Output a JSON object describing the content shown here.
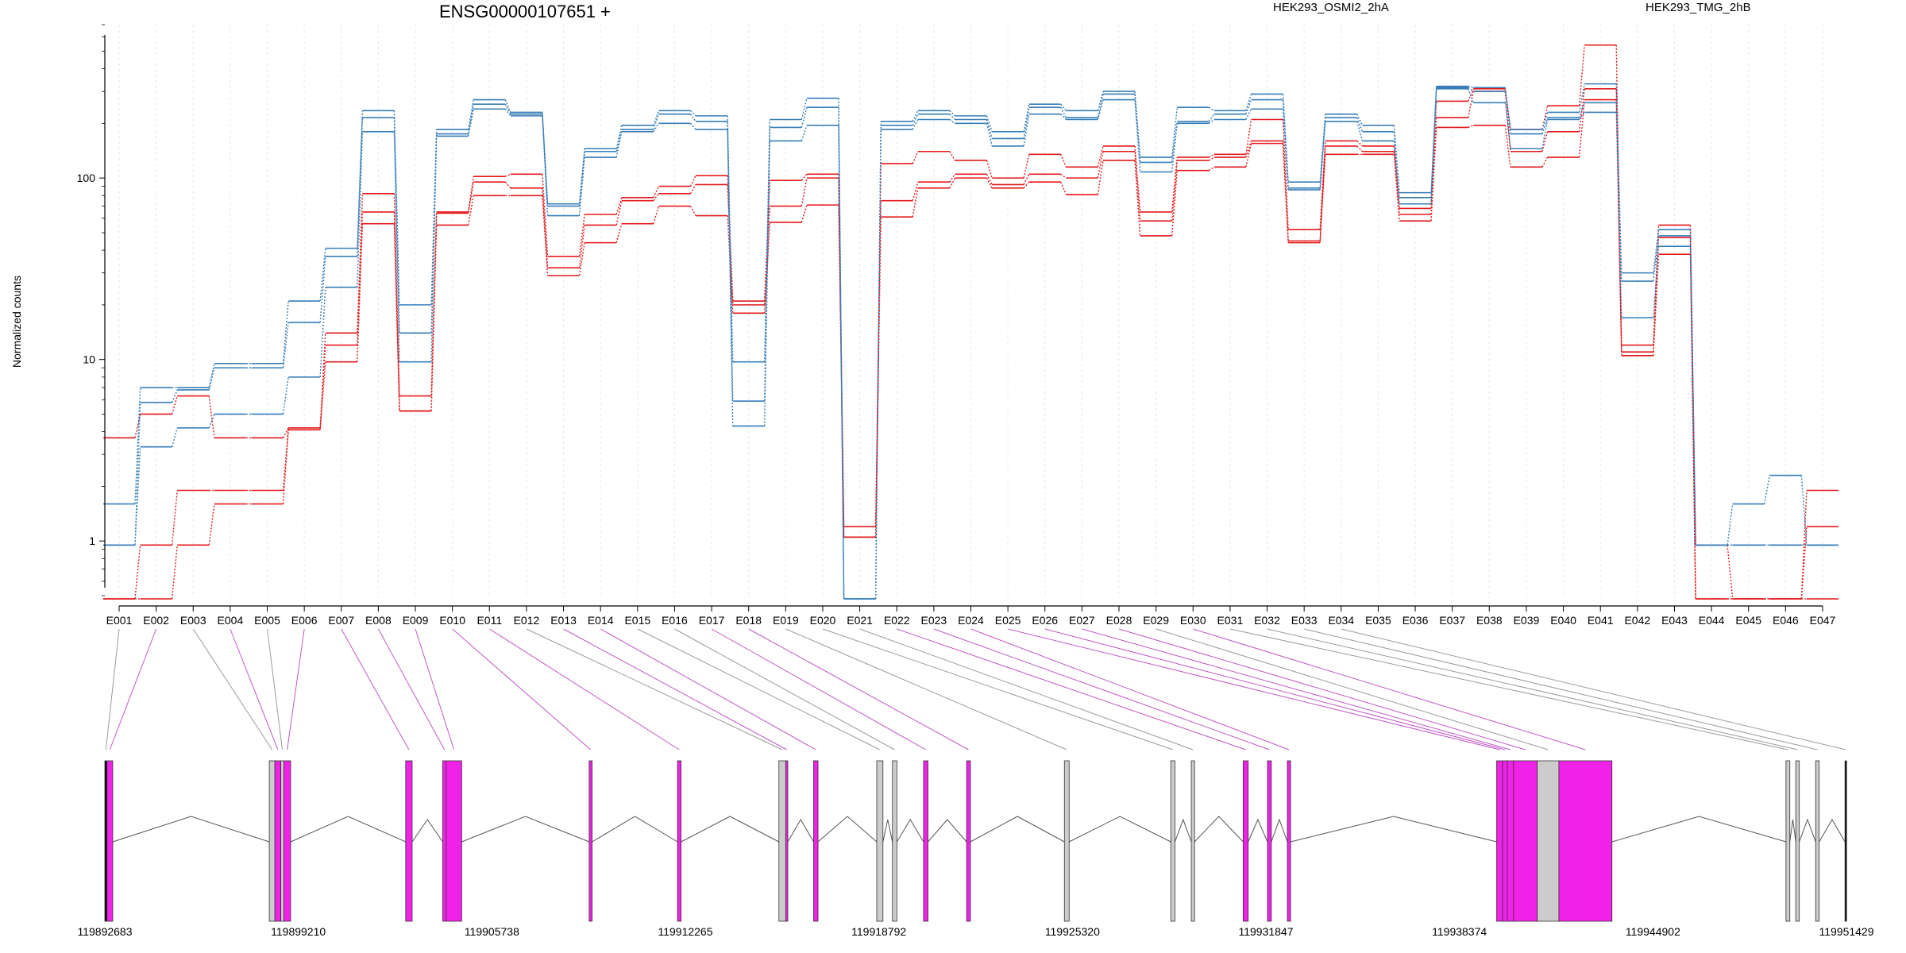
{
  "chart_data": {
    "type": "line",
    "title": "ENSG00000107651 +",
    "ylabel": "Normalized counts",
    "y_scale": "log",
    "ylim": [
      0.5,
      700
    ],
    "yticks": [
      {
        "value": 1,
        "label": "1"
      },
      {
        "value": 10,
        "label": "10"
      },
      {
        "value": 100,
        "label": "100"
      }
    ],
    "grid": true,
    "legend_placement": "top",
    "colors": {
      "HEK293_OSMI2_2hA": "#e31a1c",
      "HEK293_TMG_2hB": "#377eb8"
    },
    "legend": [
      {
        "label": "HEK293_OSMI2_2hA",
        "color": "#e31a1c"
      },
      {
        "label": "HEK293_TMG_2hB",
        "color": "#377eb8"
      }
    ],
    "categories": [
      "E001",
      "E002",
      "E003",
      "E004",
      "E005",
      "E006",
      "E007",
      "E008",
      "E009",
      "E010",
      "E011",
      "E012",
      "E013",
      "E014",
      "E015",
      "E016",
      "E017",
      "E018",
      "E019",
      "E020",
      "E021",
      "E022",
      "E023",
      "E024",
      "E025",
      "E026",
      "E027",
      "E028",
      "E029",
      "E030",
      "E031",
      "E032",
      "E033",
      "E034",
      "E035",
      "E036",
      "E037",
      "E038",
      "E039",
      "E040",
      "E041",
      "E042",
      "E043",
      "E044",
      "E045",
      "E046",
      "E047"
    ],
    "series": [
      {
        "group": "HEK293_OSMI2_2hA",
        "values": [
          3.7,
          5.0,
          6.3,
          3.7,
          3.7,
          4.2,
          14,
          82,
          6.3,
          65,
          102,
          105,
          37,
          63,
          78,
          90,
          103,
          21,
          97,
          105,
          1.2,
          120,
          140,
          125,
          100,
          135,
          115,
          150,
          65,
          130,
          135,
          210,
          52,
          160,
          150,
          68,
          265,
          310,
          185,
          250,
          540,
          12,
          55,
          0.95,
          0.48,
          0.48,
          1.9
        ]
      },
      {
        "group": "HEK293_OSMI2_2hA",
        "values": [
          0.48,
          0.95,
          1.9,
          1.9,
          1.9,
          4.2,
          12,
          65,
          5.2,
          64,
          95,
          88,
          32,
          55,
          75,
          82,
          92,
          20,
          70,
          100,
          1.05,
          75,
          95,
          105,
          92,
          105,
          100,
          140,
          58,
          125,
          130,
          160,
          45,
          150,
          140,
          63,
          215,
          300,
          140,
          180,
          310,
          11,
          47,
          0.48,
          0.48,
          0.48,
          1.2
        ]
      },
      {
        "group": "HEK293_OSMI2_2hA",
        "values": [
          0.48,
          0.48,
          0.95,
          1.6,
          1.6,
          4.1,
          9.7,
          56,
          5.2,
          55,
          80,
          80,
          29,
          44,
          56,
          70,
          62,
          18,
          57,
          71,
          1.05,
          61,
          88,
          100,
          88,
          95,
          81,
          125,
          48,
          110,
          115,
          155,
          44,
          135,
          135,
          58,
          190,
          195,
          115,
          130,
          270,
          10.5,
          38,
          0.48,
          0.48,
          0.48,
          0.48
        ]
      },
      {
        "group": "HEK293_TMG_2hB",
        "values": [
          1.6,
          7.0,
          7.0,
          9.5,
          9.5,
          21,
          41,
          235,
          20,
          185,
          270,
          230,
          72,
          145,
          195,
          235,
          220,
          9.7,
          210,
          275,
          0.48,
          205,
          235,
          220,
          180,
          255,
          235,
          300,
          130,
          245,
          235,
          290,
          95,
          225,
          195,
          83,
          320,
          315,
          185,
          230,
          330,
          30,
          52,
          0.95,
          1.6,
          2.3,
          0.95
        ]
      },
      {
        "group": "HEK293_TMG_2hB",
        "values": [
          0.95,
          5.8,
          6.8,
          9.0,
          9.0,
          16,
          37,
          215,
          14,
          175,
          255,
          225,
          70,
          140,
          185,
          225,
          205,
          5.9,
          190,
          245,
          0.48,
          195,
          225,
          210,
          165,
          245,
          215,
          290,
          122,
          205,
          225,
          270,
          88,
          215,
          180,
          78,
          315,
          300,
          175,
          215,
          260,
          27,
          48,
          0.95,
          0.95,
          0.95,
          0.95
        ]
      },
      {
        "group": "HEK293_TMG_2hB",
        "values": [
          0.95,
          3.3,
          4.2,
          5.0,
          5.0,
          8.0,
          25,
          180,
          9.7,
          170,
          240,
          220,
          62,
          130,
          180,
          200,
          185,
          4.3,
          160,
          195,
          0.48,
          185,
          210,
          200,
          150,
          225,
          210,
          270,
          108,
          200,
          210,
          240,
          86,
          205,
          160,
          72,
          310,
          260,
          145,
          210,
          230,
          17,
          42,
          0.95,
          0.95,
          0.95,
          0.95
        ]
      }
    ],
    "exon_map": {
      "coordinate_labels": [
        "119892683",
        "119899210",
        "119905738",
        "119912265",
        "119918792",
        "119925320",
        "119931847",
        "119938374",
        "119944902",
        "119951429"
      ],
      "exons": [
        {
          "start": 119892683,
          "end": 119892755,
          "color": "#000000"
        },
        {
          "start": 119892755,
          "end": 119892950,
          "color": "#f122e8"
        },
        {
          "start": 119898230,
          "end": 119898420,
          "color": "#cccccc"
        },
        {
          "start": 119898420,
          "end": 119898620,
          "color": "#f122e8"
        },
        {
          "start": 119898620,
          "end": 119898720,
          "color": "#cccccc"
        },
        {
          "start": 119898720,
          "end": 119898950,
          "color": "#f122e8"
        },
        {
          "start": 119902830,
          "end": 119903050,
          "color": "#f122e8"
        },
        {
          "start": 119904080,
          "end": 119904200,
          "color": "#f122e8"
        },
        {
          "start": 119904200,
          "end": 119904720,
          "color": "#f122e8"
        },
        {
          "start": 119909020,
          "end": 119909120,
          "color": "#f122e8"
        },
        {
          "start": 119912000,
          "end": 119912120,
          "color": "#f122e8"
        },
        {
          "start": 119915420,
          "end": 119915650,
          "color": "#cccccc"
        },
        {
          "start": 119915650,
          "end": 119915720,
          "color": "#f122e8"
        },
        {
          "start": 119916590,
          "end": 119916740,
          "color": "#f122e8"
        },
        {
          "start": 119918720,
          "end": 119918930,
          "color": "#cccccc"
        },
        {
          "start": 119919250,
          "end": 119919400,
          "color": "#cccccc"
        },
        {
          "start": 119920300,
          "end": 119920450,
          "color": "#f122e8"
        },
        {
          "start": 119921750,
          "end": 119921880,
          "color": "#f122e8"
        },
        {
          "start": 119925050,
          "end": 119925210,
          "color": "#cccccc"
        },
        {
          "start": 119928640,
          "end": 119928780,
          "color": "#cccccc"
        },
        {
          "start": 119929330,
          "end": 119929440,
          "color": "#cccccc"
        },
        {
          "start": 119931080,
          "end": 119931250,
          "color": "#f122e8"
        },
        {
          "start": 119931900,
          "end": 119932030,
          "color": "#f122e8"
        },
        {
          "start": 119932570,
          "end": 119932680,
          "color": "#f122e8"
        },
        {
          "start": 119939630,
          "end": 119939830,
          "color": "#f122e8"
        },
        {
          "start": 119939830,
          "end": 119939990,
          "color": "#f122e8"
        },
        {
          "start": 119939990,
          "end": 119940200,
          "color": "#f122e8"
        },
        {
          "start": 119940200,
          "end": 119941000,
          "color": "#f122e8"
        },
        {
          "start": 119941000,
          "end": 119941730,
          "color": "#cccccc"
        },
        {
          "start": 119941730,
          "end": 119943520,
          "color": "#f122e8"
        },
        {
          "start": 119949390,
          "end": 119949520,
          "color": "#cccccc"
        },
        {
          "start": 119949720,
          "end": 119949840,
          "color": "#cccccc"
        },
        {
          "start": 119950390,
          "end": 119950510,
          "color": "#cccccc"
        },
        {
          "start": 119951380,
          "end": 119951429,
          "color": "#000000"
        }
      ]
    }
  }
}
